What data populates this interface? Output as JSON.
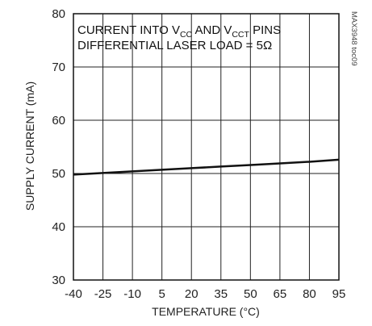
{
  "chart_data": {
    "type": "line",
    "title": "",
    "xlabel": "TEMPERATURE (°C)",
    "ylabel": "SUPPLY CURRENT (mA)",
    "xlim": [
      -40,
      95
    ],
    "ylim": [
      30,
      80
    ],
    "xticks": [
      -40,
      -25,
      -10,
      5,
      20,
      35,
      50,
      65,
      80,
      95
    ],
    "yticks": [
      30,
      40,
      50,
      60,
      70,
      80
    ],
    "grid": true,
    "series": [
      {
        "x": [
          -40,
          -25,
          -10,
          5,
          20,
          35,
          50,
          65,
          80,
          95
        ],
        "y": [
          49.8,
          50.1,
          50.4,
          50.7,
          51.0,
          51.3,
          51.6,
          51.9,
          52.2,
          52.6
        ]
      }
    ],
    "annotation": {
      "line1_parts": [
        "CURRENT INTO V",
        "CC",
        " AND V",
        "CCT",
        " PINS"
      ],
      "line2_main": "DIFFERENTIAL LASER LOAD = 5",
      "line2_symbol": "Ω"
    },
    "figure_id": "MAX3948 toc09"
  }
}
